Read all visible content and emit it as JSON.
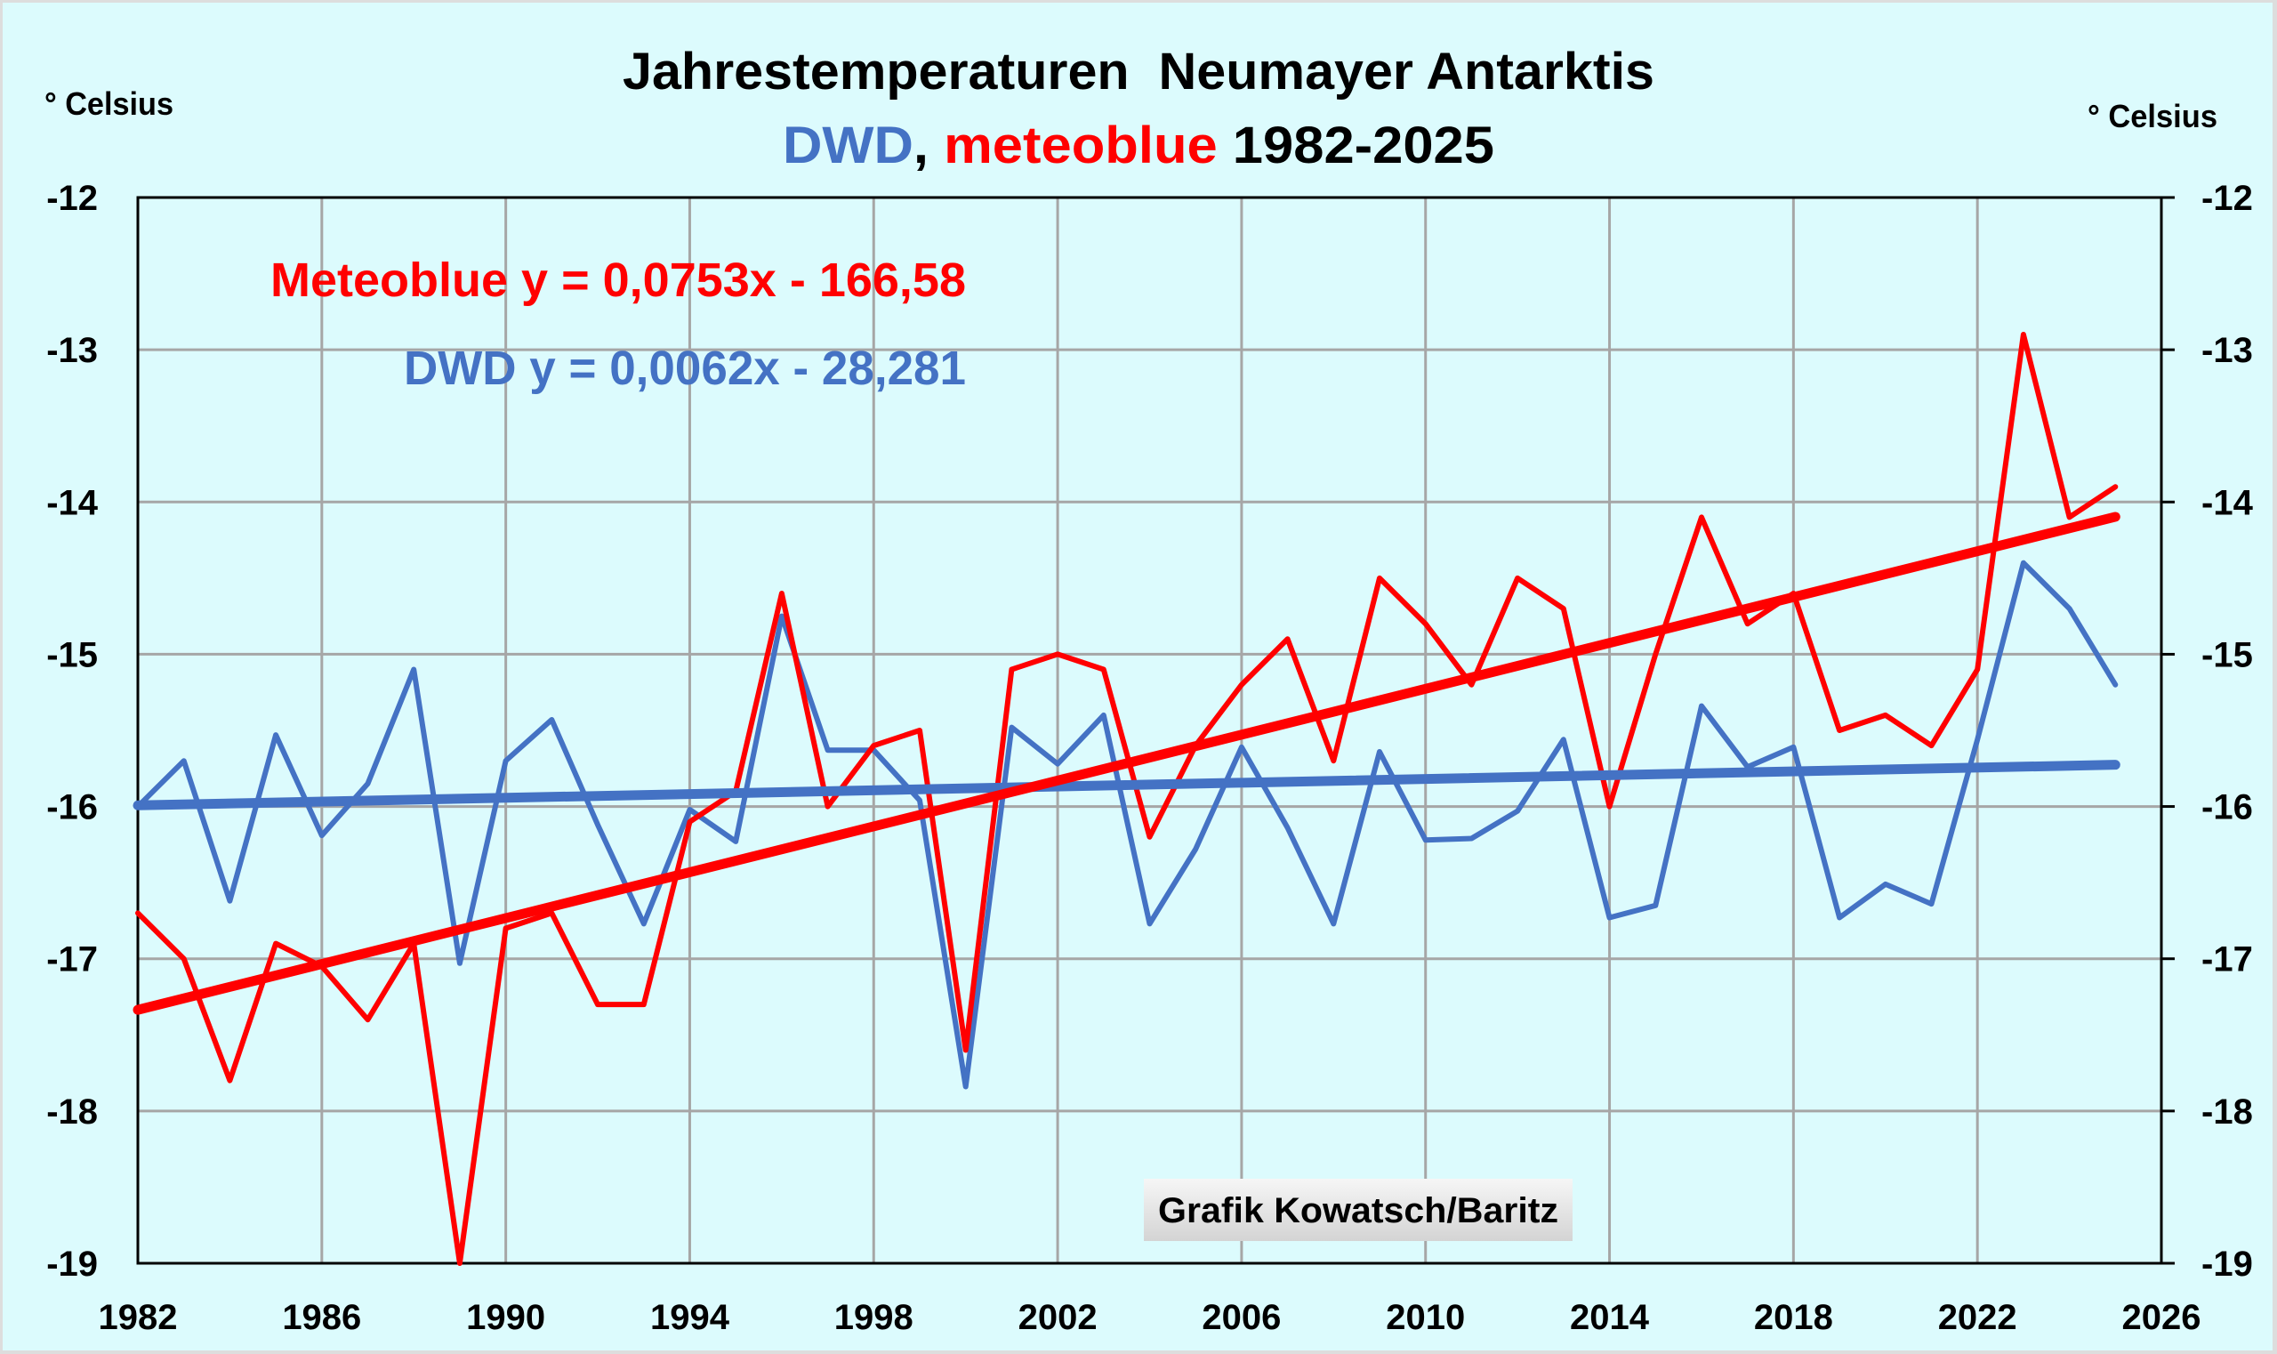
{
  "chart_data": {
    "type": "line",
    "title": "Jahrestemperaturen  Neumayer Antarktis",
    "subtitle": {
      "part1": "DWD",
      "part2": ", ",
      "part3": "meteoblue",
      "part4": " 1982-2025"
    },
    "ylabel_left": "° Celsius",
    "ylabel_right": "° Celsius",
    "xlabel": "",
    "xlim": [
      1982,
      2026
    ],
    "ylim": [
      -19,
      -12
    ],
    "x_ticks": [
      1982,
      1986,
      1990,
      1994,
      1998,
      2002,
      2006,
      2010,
      2014,
      2018,
      2022,
      2026
    ],
    "x_tick_labels": [
      "1982",
      "1986",
      "1990",
      "1994",
      "1998",
      "2002",
      "2006",
      "2010",
      "2014",
      "2018",
      "2022",
      "2026"
    ],
    "y_ticks": [
      -12,
      -13,
      -14,
      -15,
      -16,
      -17,
      -18,
      -19
    ],
    "y_tick_labels": [
      "-12",
      "-13",
      "-14",
      "-15",
      "-16",
      "-17",
      "-18",
      "-19"
    ],
    "grid": true,
    "x": [
      1982,
      1983,
      1984,
      1985,
      1986,
      1987,
      1988,
      1989,
      1990,
      1991,
      1992,
      1993,
      1994,
      1995,
      1996,
      1997,
      1998,
      1999,
      2000,
      2001,
      2002,
      2003,
      2004,
      2005,
      2006,
      2007,
      2008,
      2009,
      2010,
      2011,
      2012,
      2013,
      2014,
      2015,
      2016,
      2017,
      2018,
      2019,
      2020,
      2021,
      2022,
      2023,
      2024,
      2025
    ],
    "series": [
      {
        "name": "DWD",
        "color": "#4472c4",
        "values": [
          -16.0,
          -15.7,
          -16.62,
          -15.53,
          -16.19,
          -15.85,
          -15.1,
          -17.03,
          -15.7,
          -15.43,
          -16.12,
          -16.77,
          -16.02,
          -16.23,
          -14.75,
          -15.63,
          -15.63,
          -15.96,
          -17.84,
          -15.48,
          -15.72,
          -15.4,
          -16.77,
          -16.28,
          -15.61,
          -16.14,
          -16.77,
          -15.64,
          -16.22,
          -16.21,
          -16.03,
          -15.56,
          -16.73,
          -16.65,
          -15.34,
          -15.74,
          -15.61,
          -16.73,
          -16.51,
          -16.64,
          -15.56,
          -14.4,
          -14.7,
          -15.2
        ]
      },
      {
        "name": "meteoblue",
        "color": "#ff0000",
        "values": [
          -16.7,
          -17.0,
          -17.8,
          -16.9,
          -17.05,
          -17.4,
          -16.9,
          -19.0,
          -16.8,
          -16.7,
          -17.3,
          -17.3,
          -16.1,
          -15.9,
          -14.6,
          -16.0,
          -15.6,
          -15.5,
          -17.6,
          -15.1,
          -15.0,
          -15.1,
          -16.2,
          -15.6,
          -15.2,
          -14.9,
          -15.7,
          -14.5,
          -14.8,
          -15.2,
          -14.5,
          -14.7,
          -16.0,
          -15.0,
          -14.1,
          -14.8,
          -14.6,
          -15.5,
          -15.4,
          -15.6,
          -15.1,
          -12.9,
          -14.1,
          -13.9
        ]
      }
    ],
    "trendlines": [
      {
        "name": "Meteoblue",
        "label": "Meteoblue y = 0,0753x - 166,58",
        "slope": 0.0753,
        "intercept": -166.58,
        "color": "#ff0000"
      },
      {
        "name": "DWD",
        "label": "DWD y = 0,0062x - 28,281",
        "slope": 0.0062,
        "intercept": -28.281,
        "color": "#4472c4"
      }
    ],
    "annotations": {
      "credit": "Grafik Kowatsch/Baritz"
    },
    "colors": {
      "background": "#dcfbfd",
      "grid": "#a6a6a6",
      "axis": "#000000",
      "title": "#000000"
    }
  }
}
